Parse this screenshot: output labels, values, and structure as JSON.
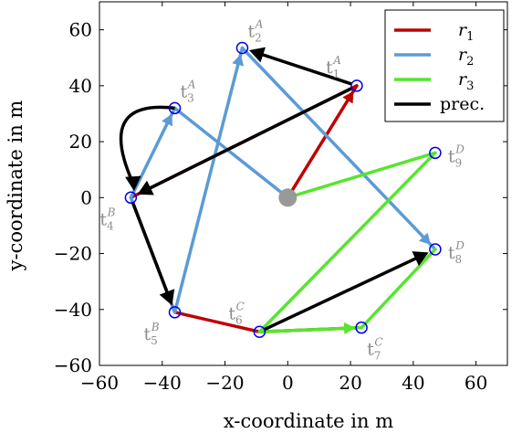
{
  "chart_data": {
    "type": "scatter",
    "xlabel": "x-coordinate in m",
    "ylabel": "y-coordinate in m",
    "xlim": [
      -60,
      70
    ],
    "ylim": [
      -60,
      70
    ],
    "xticks": [
      -60,
      -40,
      -20,
      0,
      20,
      40,
      60
    ],
    "yticks": [
      -60,
      -40,
      -20,
      0,
      20,
      40,
      60
    ],
    "xtick_labels": [
      "−60",
      "−40",
      "−20",
      "0",
      "20",
      "40",
      "60"
    ],
    "ytick_labels": [
      "−60",
      "−40",
      "−20",
      "0",
      "20",
      "40",
      "60"
    ],
    "depot": {
      "x": 0,
      "y": 0,
      "color": "#999999"
    },
    "tasks": [
      {
        "id": "t1",
        "base": "t",
        "sub": "1",
        "sup": "A",
        "x": 22,
        "y": 40,
        "label_pos": "upper-left"
      },
      {
        "id": "t2",
        "base": "t",
        "sub": "2",
        "sup": "A",
        "x": -14.5,
        "y": 53.5,
        "label_pos": "upper-right"
      },
      {
        "id": "t3",
        "base": "t",
        "sub": "3",
        "sup": "A",
        "x": -36,
        "y": 32,
        "label_pos": "upper-right"
      },
      {
        "id": "t4",
        "base": "t",
        "sub": "4",
        "sup": "B",
        "x": -50,
        "y": 0,
        "label_pos": "lower-left"
      },
      {
        "id": "t5",
        "base": "t",
        "sub": "5",
        "sup": "B",
        "x": -36,
        "y": -41,
        "label_pos": "lower-left"
      },
      {
        "id": "t6",
        "base": "t",
        "sub": "6",
        "sup": "C",
        "x": -9,
        "y": -48,
        "label_pos": "upper-left"
      },
      {
        "id": "t7",
        "base": "t",
        "sub": "7",
        "sup": "C",
        "x": 23.5,
        "y": -46.5,
        "label_pos": "lower-right"
      },
      {
        "id": "t8",
        "base": "t",
        "sub": "8",
        "sup": "D",
        "x": 47,
        "y": -18.5,
        "label_pos": "right"
      },
      {
        "id": "t9",
        "base": "t",
        "sub": "9",
        "sup": "D",
        "x": 47,
        "y": 16,
        "label_pos": "right"
      }
    ],
    "series": [
      {
        "name": "r",
        "sub": "1",
        "color": "#c00000",
        "points": [
          [
            0,
            0
          ],
          [
            22,
            40
          ],
          [
            -50,
            0
          ],
          [
            -36,
            -41
          ],
          [
            -9,
            -48
          ],
          [
            23.5,
            -46.5
          ]
        ]
      },
      {
        "name": "r",
        "sub": "2",
        "color": "#5b9bd5",
        "points": [
          [
            0,
            0
          ],
          [
            -36,
            32
          ],
          [
            -50,
            0
          ],
          [
            -36,
            -41
          ],
          [
            -14.5,
            53.5
          ],
          [
            47,
            -18.5
          ]
        ]
      },
      {
        "name": "r",
        "sub": "3",
        "color": "#55e62d",
        "points": [
          [
            0,
            0
          ],
          [
            47,
            16
          ],
          [
            -9,
            -48
          ],
          [
            23.5,
            -46.5
          ],
          [
            47,
            -18.5
          ]
        ]
      }
    ],
    "precedence": {
      "name": "prec.",
      "color": "#000000",
      "arrows": [
        {
          "from": [
            22,
            40
          ],
          "to": [
            -14.5,
            53.5
          ],
          "curve": 0
        },
        {
          "from": [
            22,
            40
          ],
          "to": [
            -50,
            0
          ],
          "curve": 0
        },
        {
          "from": [
            -36,
            32
          ],
          "to": [
            -50,
            0
          ],
          "curve": 1
        },
        {
          "from": [
            -50,
            0
          ],
          "to": [
            -36,
            -41
          ],
          "curve": 0
        },
        {
          "from": [
            -9,
            -48
          ],
          "to": [
            47,
            -18.5
          ],
          "curve": 0
        }
      ]
    },
    "route_arrows": [
      {
        "series": 1,
        "from": [
          -50,
          0
        ],
        "to": [
          -36,
          32
        ]
      },
      {
        "series": 1,
        "from": [
          -36,
          -41
        ],
        "to": [
          -14.5,
          53.5
        ]
      },
      {
        "series": 1,
        "from": [
          -14.5,
          53.5
        ],
        "to": [
          47,
          -18.5
        ]
      },
      {
        "series": 2,
        "from": [
          -9,
          -48
        ],
        "to": [
          23.5,
          -46.5
        ]
      },
      {
        "series": 0,
        "from": [
          0,
          0
        ],
        "to": [
          22,
          40
        ]
      }
    ],
    "legend_position": "top-right"
  }
}
